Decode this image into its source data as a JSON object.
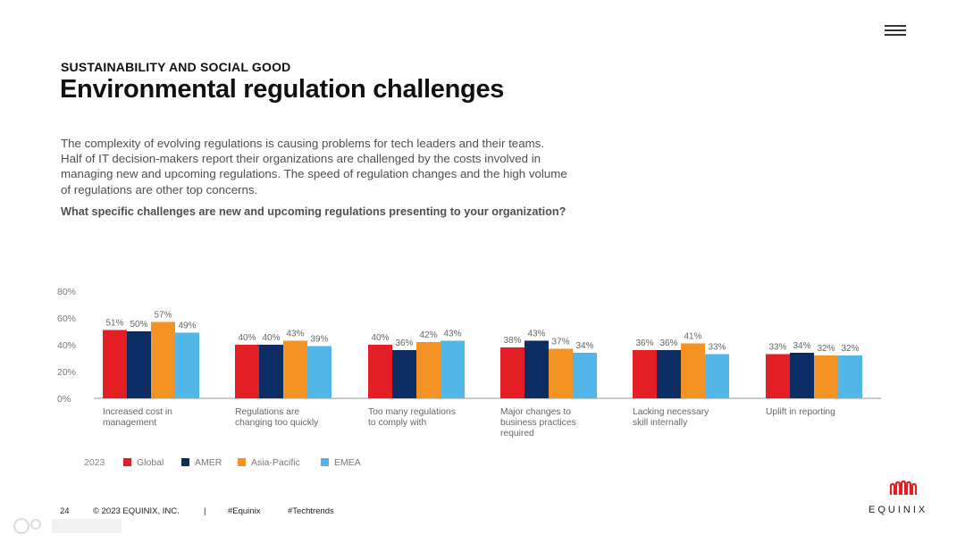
{
  "header": {
    "eyebrow": "SUSTAINABILITY AND SOCIAL GOOD",
    "title": "Environmental regulation challenges",
    "body": "The complexity of evolving regulations is causing problems for tech leaders and their teams.\nHalf of IT decision-makers report their organizations are challenged by the costs involved in\nmanaging new and upcoming regulations. The speed of regulation changes and the high volume\nof regulations are other top concerns.",
    "question": "What specific challenges are new and upcoming regulations presenting to your organization?"
  },
  "chart_data": {
    "type": "bar",
    "title": "",
    "xlabel": "",
    "ylabel": "",
    "ylim": [
      0,
      80
    ],
    "yticks": [
      "0%",
      "20%",
      "40%",
      "60%",
      "80%"
    ],
    "categories": [
      "Increased cost in\nmanagement",
      "Regulations are\nchanging too quickly",
      "Too many regulations\nto comply with",
      "Major changes to\nbusiness practices\nrequired",
      "Lacking necessary\nskill internally",
      "Uplift in reporting"
    ],
    "series": [
      {
        "name": "Global",
        "color": "#e31e24",
        "values": [
          51,
          40,
          40,
          38,
          36,
          33
        ]
      },
      {
        "name": "AMER",
        "color": "#0b2d63",
        "values": [
          50,
          40,
          36,
          43,
          36,
          34
        ]
      },
      {
        "name": "Asia-Pacific",
        "color": "#f39323",
        "values": [
          57,
          43,
          42,
          37,
          41,
          32
        ]
      },
      {
        "name": "EMEA",
        "color": "#52b6e8",
        "values": [
          49,
          39,
          43,
          34,
          33,
          32
        ]
      }
    ],
    "legend_year": "2023",
    "legend_position": "bottom-left",
    "grid": false
  },
  "footer": {
    "page_number": "24",
    "copyright": "© 2023 EQUINIX, INC.",
    "separator": "|",
    "hashtag_1": "#Equinix",
    "hashtag_2": "#Techtrends"
  },
  "brand": {
    "name": "EQUINIX",
    "accent": "#e31e24"
  }
}
